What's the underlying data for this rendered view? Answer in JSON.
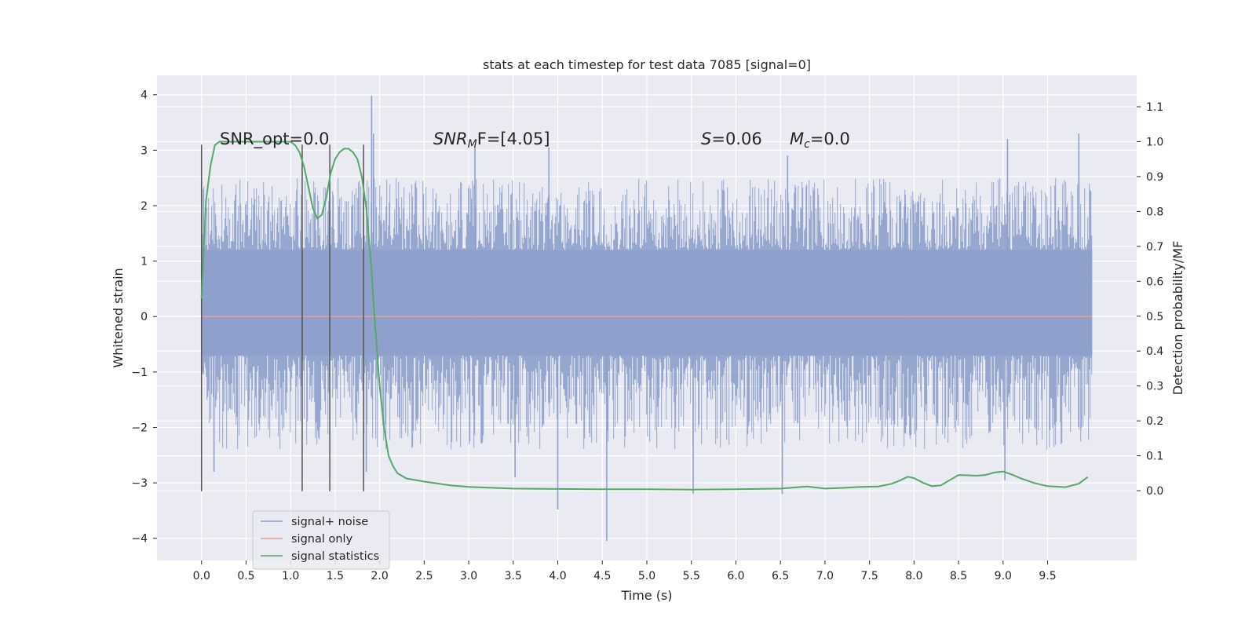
{
  "chart_data": {
    "type": "line",
    "title": "stats at each timestep for test data 7085 [signal=0]",
    "xlabel": "Time (s)",
    "ylabel": "Whitened strain",
    "ylabel_right": "Detection probability/MF",
    "xlim": [
      -0.5,
      10.5
    ],
    "ylim": [
      -4.4,
      4.35
    ],
    "ylim_right": [
      -0.2,
      1.19
    ],
    "x_ticks": [
      0.0,
      0.5,
      1.0,
      1.5,
      2.0,
      2.5,
      3.0,
      3.5,
      4.0,
      4.5,
      5.0,
      5.5,
      6.0,
      6.5,
      7.0,
      7.5,
      8.0,
      8.5,
      9.0,
      9.5
    ],
    "x_tick_labels": [
      "0.0",
      "0.5",
      "1.0",
      "1.5",
      "2.0",
      "2.5",
      "3.0",
      "3.5",
      "4.0",
      "4.5",
      "5.0",
      "5.5",
      "6.0",
      "6.5",
      "7.0",
      "7.5",
      "8.0",
      "8.5",
      "9.0",
      "9.5"
    ],
    "y_ticks": [
      -4,
      -3,
      -2,
      -1,
      0,
      1,
      2,
      3,
      4
    ],
    "y_tick_labels": [
      "−4",
      "−3",
      "−2",
      "−1",
      "0",
      "1",
      "2",
      "3",
      "4"
    ],
    "y_ticks_right": [
      0.0,
      0.1,
      0.2,
      0.3,
      0.4,
      0.5,
      0.6,
      0.7,
      0.8,
      0.9,
      1.0,
      1.1
    ],
    "y_tick_labels_right": [
      "0.0",
      "0.1",
      "0.2",
      "0.3",
      "0.4",
      "0.5",
      "0.6",
      "0.7",
      "0.8",
      "0.9",
      "1.0",
      "1.1"
    ],
    "grid": true,
    "legend_position": "lower-left",
    "annotations": {
      "snr_opt": "SNR_opt=0.0",
      "snr_mf_symbol": "SNR",
      "snr_mf_sub": "M",
      "snr_mf_rest": "F=[4.05]",
      "s_symbol": "S",
      "s_rest": "=0.06",
      "mc_symbol": "M",
      "mc_sub": "c",
      "mc_rest": "=0.0"
    },
    "vertical_markers": [
      0.0,
      1.13,
      1.44,
      1.82
    ],
    "vertical_marker_range": [
      -3.15,
      3.1
    ],
    "series": [
      {
        "name": "signal+ noise",
        "color": "#8da0cb",
        "kind": "noise",
        "x_range": [
          0.0,
          10.0
        ],
        "core_band": [
          -0.7,
          1.2
        ],
        "typical_extent": [
          -2.4,
          2.5
        ],
        "spikes": [
          [
            1.91,
            3.98
          ],
          [
            1.93,
            3.3
          ],
          [
            3.07,
            3.05
          ],
          [
            3.9,
            3.05
          ],
          [
            7.9,
            2.2
          ],
          [
            9.05,
            3.2
          ],
          [
            9.85,
            3.3
          ],
          [
            6.58,
            2.9
          ],
          [
            4.0,
            -3.48
          ],
          [
            4.55,
            -4.05
          ],
          [
            5.52,
            -3.2
          ],
          [
            6.52,
            -3.2
          ],
          [
            3.52,
            -2.9
          ],
          [
            1.85,
            -2.8
          ],
          [
            9.02,
            -2.95
          ],
          [
            0.14,
            -2.8
          ]
        ]
      },
      {
        "name": "signal only",
        "color": "#e8a48c",
        "kind": "flat",
        "value": 0.0
      },
      {
        "name": "signal statistics",
        "color": "#55a868",
        "axis": "right",
        "x": [
          0.0,
          0.05,
          0.1,
          0.15,
          0.2,
          0.3,
          0.4,
          0.5,
          0.6,
          0.7,
          0.8,
          0.9,
          1.0,
          1.05,
          1.1,
          1.15,
          1.2,
          1.25,
          1.3,
          1.35,
          1.4,
          1.45,
          1.5,
          1.55,
          1.6,
          1.65,
          1.7,
          1.75,
          1.8,
          1.85,
          1.9,
          1.95,
          2.0,
          2.05,
          2.1,
          2.15,
          2.2,
          2.3,
          2.5,
          2.8,
          3.0,
          3.5,
          4.0,
          4.5,
          5.0,
          5.5,
          6.0,
          6.5,
          6.8,
          7.0,
          7.2,
          7.4,
          7.6,
          7.75,
          7.85,
          7.93,
          8.0,
          8.1,
          8.2,
          8.3,
          8.4,
          8.5,
          8.6,
          8.7,
          8.8,
          8.9,
          9.0,
          9.1,
          9.2,
          9.35,
          9.5,
          9.7,
          9.85,
          9.95
        ],
        "values": [
          0.55,
          0.83,
          0.93,
          0.99,
          1.0,
          1.0,
          1.0,
          1.0,
          1.0,
          1.0,
          1.0,
          1.0,
          1.0,
          0.99,
          0.97,
          0.93,
          0.87,
          0.81,
          0.78,
          0.79,
          0.84,
          0.91,
          0.95,
          0.97,
          0.98,
          0.98,
          0.97,
          0.95,
          0.9,
          0.81,
          0.66,
          0.47,
          0.3,
          0.18,
          0.1,
          0.07,
          0.05,
          0.035,
          0.026,
          0.015,
          0.011,
          0.006,
          0.005,
          0.004,
          0.004,
          0.003,
          0.004,
          0.006,
          0.012,
          0.006,
          0.008,
          0.011,
          0.012,
          0.02,
          0.03,
          0.04,
          0.036,
          0.023,
          0.013,
          0.015,
          0.03,
          0.045,
          0.044,
          0.043,
          0.045,
          0.052,
          0.055,
          0.046,
          0.035,
          0.022,
          0.013,
          0.01,
          0.02,
          0.039
        ]
      }
    ],
    "legend": {
      "items": [
        {
          "label": "signal+ noise",
          "color": "#8da0cb"
        },
        {
          "label": "signal only",
          "color": "#e8a48c"
        },
        {
          "label": "signal statistics",
          "color": "#55a868"
        }
      ]
    }
  }
}
